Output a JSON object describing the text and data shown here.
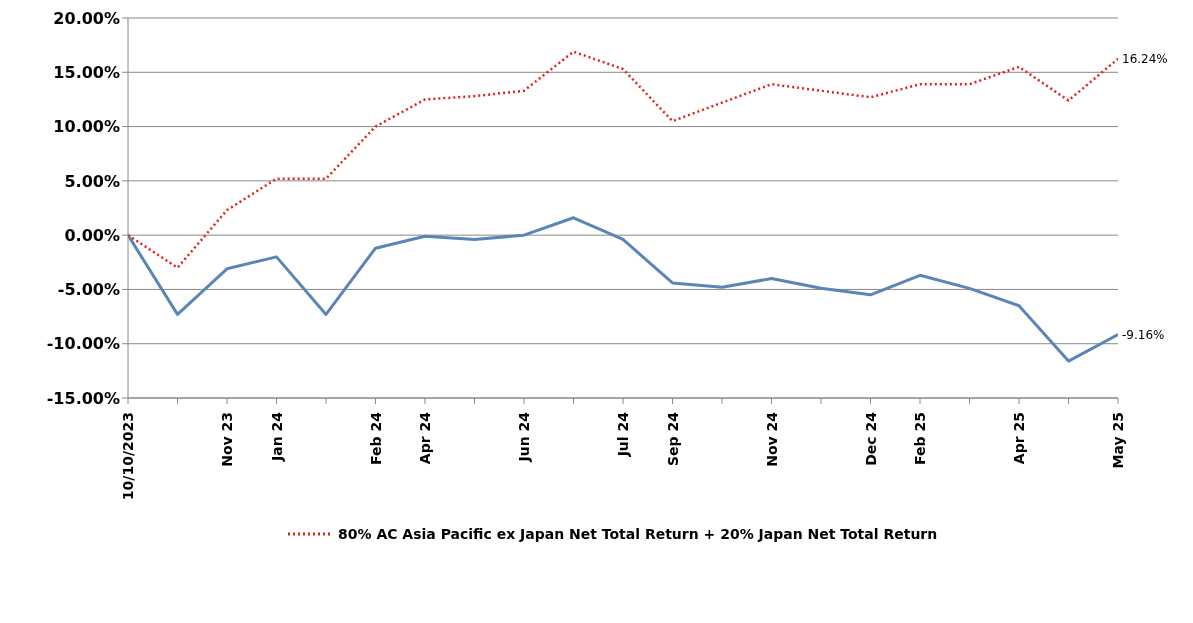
{
  "chart_data": {
    "type": "line",
    "categories": [
      "10/10/2023",
      null,
      "Nov 23",
      "Jan 24",
      null,
      "Feb 24",
      "Apr 24",
      null,
      "Jun 24",
      null,
      "Jul 24",
      "Sep 24",
      null,
      "Nov 24",
      null,
      "Dec 24",
      "Feb 25",
      null,
      "Apr 25",
      null,
      "May 25"
    ],
    "series": [
      {
        "color": "#5a86b6",
        "line_style": "solid",
        "values": [
          0,
          -7.3,
          -3.1,
          -2.0,
          -7.3,
          -1.2,
          -0.1,
          -0.4,
          0.0,
          1.6,
          -0.4,
          -4.4,
          -4.8,
          -4.0,
          -4.9,
          -5.5,
          -3.7,
          -4.9,
          -6.5,
          -11.6,
          -9.16
        ],
        "value_labels": [
          null,
          null,
          null,
          null,
          null,
          null,
          null,
          null,
          null,
          null,
          null,
          null,
          null,
          null,
          null,
          null,
          null,
          null,
          null,
          null,
          "-9.16%"
        ]
      },
      {
        "name": "80% AC Asia Pacific ex Japan Net Total Return + 20% Japan Net Total Return",
        "color": "#e0201b",
        "line_style": "dotted",
        "values": [
          0,
          -3.0,
          2.3,
          5.2,
          5.2,
          10.0,
          12.5,
          12.8,
          13.3,
          16.9,
          15.3,
          10.5,
          12.2,
          13.9,
          13.3,
          12.7,
          13.9,
          13.9,
          15.5,
          12.4,
          16.24
        ],
        "value_labels": [
          null,
          null,
          null,
          null,
          null,
          null,
          null,
          null,
          null,
          null,
          null,
          null,
          null,
          null,
          null,
          null,
          null,
          null,
          null,
          null,
          "16.24%"
        ]
      }
    ],
    "ylim": [
      -15,
      20
    ],
    "yticks": [
      {
        "value": -15,
        "label": "-15.00%"
      },
      {
        "value": -10,
        "label": "-10.00%"
      },
      {
        "value": -5,
        "label": "-5.00%"
      },
      {
        "value": 0,
        "label": "0.00%"
      },
      {
        "value": 5,
        "label": "5.00%"
      },
      {
        "value": 10,
        "label": "10.00%"
      },
      {
        "value": 15,
        "label": "15.00%"
      },
      {
        "value": 20,
        "label": "20.00%"
      }
    ],
    "grid": "y",
    "legend": "bottom",
    "marker": "none"
  }
}
